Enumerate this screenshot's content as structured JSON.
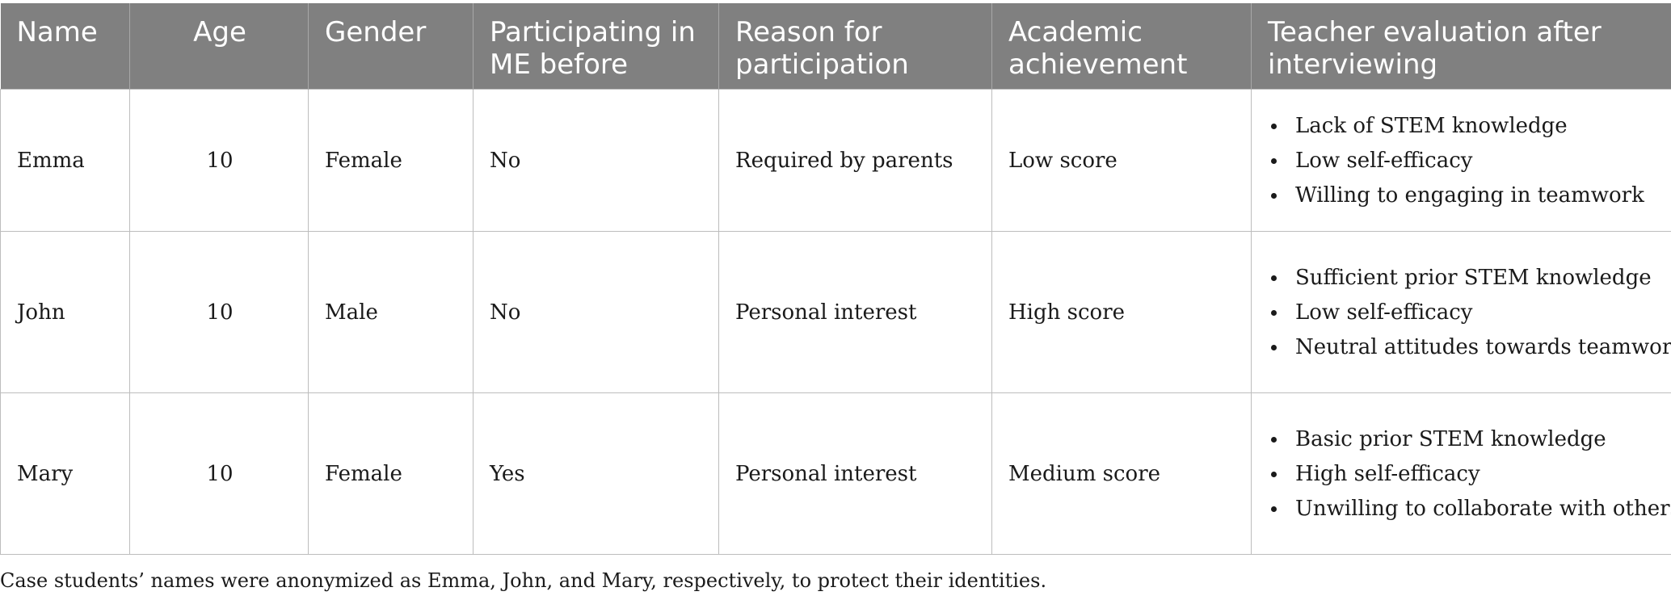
{
  "table": {
    "headers": [
      "Name",
      "Age",
      "Gender",
      "Participating in ME before",
      "Reason for participation",
      "Academic achievement",
      "Teacher evaluation after interviewing"
    ],
    "rows": [
      {
        "name": "Emma",
        "age": "10",
        "gender": "Female",
        "participated_before": "No",
        "reason": "Required by parents",
        "achievement": "Low score",
        "evaluation": [
          "Lack of STEM knowledge",
          "Low self-efficacy",
          "Willing to engaging in teamwork"
        ]
      },
      {
        "name": "John",
        "age": "10",
        "gender": "Male",
        "participated_before": "No",
        "reason": "Personal interest",
        "achievement": "High score",
        "evaluation": [
          "Sufficient prior STEM knowledge",
          "Low self-efficacy",
          "Neutral attitudes towards teamwork"
        ]
      },
      {
        "name": "Mary",
        "age": "10",
        "gender": "Female",
        "participated_before": "Yes",
        "reason": "Personal interest",
        "achievement": "Medium score",
        "evaluation": [
          "Basic prior STEM knowledge",
          "High self-efficacy",
          "Unwilling to collaborate with others"
        ]
      }
    ]
  },
  "footnote": "Case students’ names were anonymized as Emma, John, and Mary, respectively, to protect their identities.",
  "colors": {
    "header_background": "#808080",
    "header_text": "#ffffff",
    "grid": "#bdbdbd",
    "body_text": "#1a1a1a"
  }
}
